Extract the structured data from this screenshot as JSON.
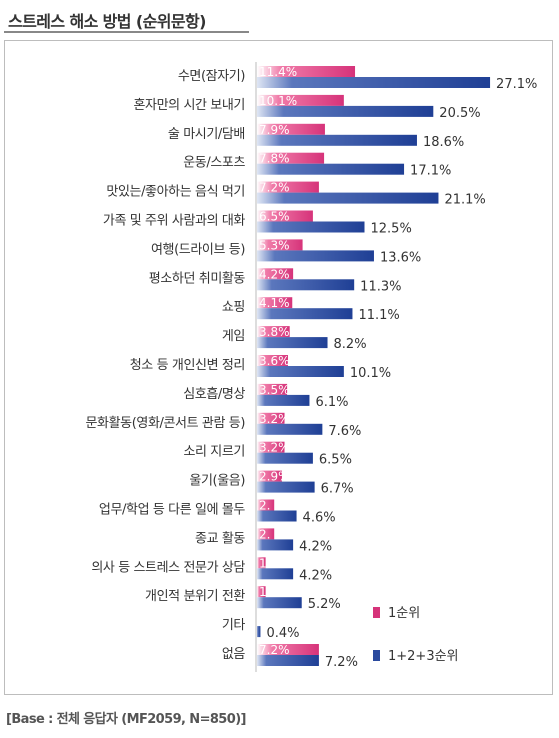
{
  "title": "스트레스 해소 방법 (순위문항)",
  "footnote": "[Base : 전체 응답자 (MF2059, N=850)]",
  "chart_data": {
    "type": "bar",
    "orientation": "horizontal",
    "title": "스트레스 해소 방법 (순위문항)",
    "unit": "%",
    "categories": [
      "수면(잠자기)",
      "혼자만의 시간 보내기",
      "술 마시기/담배",
      "운동/스포츠",
      "맛있는/좋아하는 음식 먹기",
      "가족 및 주위 사람과의 대화",
      "여행(드라이브 등)",
      "평소하던 취미활동",
      "쇼핑",
      "게임",
      "청소 등 개인신변 정리",
      "심호흡/명상",
      "문화활동(영화/콘서트 관람 등)",
      "소리 지르기",
      "울기(울음)",
      "업무/학업 등 다른 일에 몰두",
      "종교 활동",
      "의사 등 스트레스 전문가 상담",
      "개인적 분위기 전환",
      "기타",
      "없음"
    ],
    "series": [
      {
        "name": "1순위",
        "color": "#d6337a",
        "values": [
          11.4,
          10.1,
          7.9,
          7.8,
          7.2,
          6.5,
          5.3,
          4.2,
          4.1,
          3.8,
          3.6,
          3.5,
          3.2,
          3.2,
          2.9,
          2.0,
          2.0,
          1.0,
          1.0,
          0.0,
          7.2
        ],
        "labels": [
          "11.4%",
          "10.1%",
          "7.9%",
          "7.8%",
          "7.2%",
          "6.5%",
          "5.3%",
          "4.2%",
          "4.1%",
          "3.8%",
          "3.6%",
          "3.5%",
          "3.2%",
          "3.2%",
          "2.9%",
          "2.",
          "2.",
          "1.",
          "1.",
          "",
          "7.2%"
        ]
      },
      {
        "name": "1+2+3순위",
        "color": "#2a4a9e",
        "values": [
          27.1,
          20.5,
          18.6,
          17.1,
          21.1,
          12.5,
          13.6,
          11.3,
          11.1,
          8.2,
          10.1,
          6.1,
          7.6,
          6.5,
          6.7,
          4.6,
          4.2,
          4.2,
          5.2,
          0.4,
          7.2
        ],
        "labels": [
          "27.1%",
          "20.5%",
          "18.6%",
          "17.1%",
          "21.1%",
          "12.5%",
          "13.6%",
          "11.3%",
          "11.1%",
          "8.2%",
          "10.1%",
          "6.1%",
          "7.6%",
          "6.5%",
          "6.7%",
          "4.6%",
          "4.2%",
          "4.2%",
          "5.2%",
          "0.4%",
          "7.2%"
        ]
      }
    ],
    "legend": "bottom-right"
  }
}
